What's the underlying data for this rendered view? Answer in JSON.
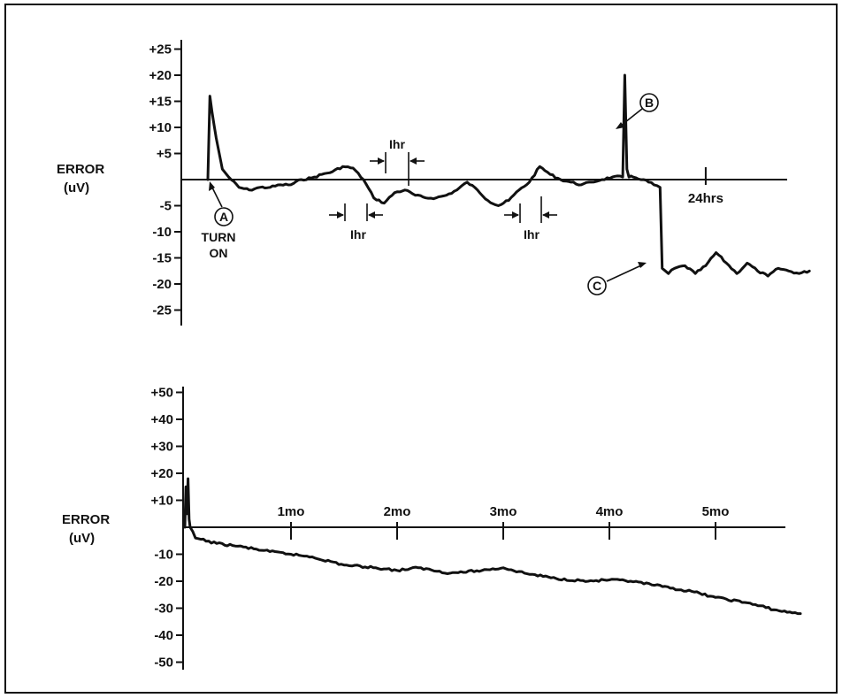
{
  "chart_data": [
    {
      "type": "line",
      "ylabel": "ERROR\n(uV)",
      "ylabel_lines": [
        "ERROR",
        "(uV)"
      ],
      "ylim": [
        -25,
        25
      ],
      "yticks": [
        25,
        20,
        15,
        10,
        5,
        -5,
        -10,
        -15,
        -20,
        -25
      ],
      "ytick_labels": [
        "+25",
        "+20",
        "+15",
        "+10",
        "+5",
        "-5",
        "-10",
        "-15",
        "-20",
        "-25"
      ],
      "xlim_hours": [
        0,
        29
      ],
      "xticks": [
        {
          "x": 24,
          "label": "24hrs"
        }
      ],
      "grid": false,
      "series": [
        {
          "x": [
            0,
            0.1,
            0.2,
            0.4,
            0.7,
            1.0,
            1.5,
            2.0,
            2.5,
            3.0,
            3.5,
            4.0,
            4.5,
            5.0,
            5.5,
            6.0,
            6.5,
            7.0,
            7.5,
            8.0,
            8.5,
            9.0,
            9.5,
            10.0,
            10.5,
            11.0,
            11.5,
            12.0,
            12.5,
            13.0,
            13.5,
            14.0,
            14.5,
            15.0,
            15.5,
            16.0,
            16.5,
            17.0,
            17.5,
            18.0,
            18.5,
            19.0,
            19.5,
            20.0,
            20.1,
            20.2,
            20.3,
            20.5,
            21.0,
            21.5,
            21.8,
            21.9,
            22.2,
            22.5,
            23.0,
            23.5,
            24.0,
            24.5,
            25.0,
            25.5,
            26.0,
            26.5,
            27.0,
            27.5,
            28.0,
            28.5,
            29.0
          ],
          "y": [
            0,
            16,
            13,
            8,
            2,
            0.5,
            -1.5,
            -2,
            -1.5,
            -1.5,
            -1,
            -1,
            0,
            0.3,
            1,
            1.5,
            2.5,
            2.2,
            0,
            -3.5,
            -4.5,
            -2.5,
            -2,
            -3,
            -3.5,
            -3.5,
            -3,
            -2,
            -0.5,
            -2,
            -4,
            -5,
            -4,
            -2,
            -0.5,
            2.5,
            1,
            0,
            -0.5,
            -1,
            -0.5,
            0,
            0.5,
            0.5,
            20,
            2,
            0.5,
            0.5,
            0,
            -1,
            -1.5,
            -17,
            -18,
            -17,
            -16.5,
            -18,
            -16.5,
            -14,
            -16,
            -18,
            -16,
            -17.5,
            -18.5,
            -17,
            -17.5,
            -18,
            -17.5
          ]
        }
      ],
      "annotations": [
        {
          "label": "A",
          "text": "TURN ON",
          "text_lines": [
            "TURN",
            "ON"
          ],
          "x": 0.1
        },
        {
          "label": "B",
          "x": 20.1
        },
        {
          "label": "C",
          "x": 21.9
        }
      ],
      "interval_markers": [
        "Ihr",
        "Ihr",
        "Ihr"
      ]
    },
    {
      "type": "line",
      "ylabel": "ERROR\n(uV)",
      "ylabel_lines": [
        "ERROR",
        "(uV)"
      ],
      "ylim": [
        -50,
        50
      ],
      "yticks": [
        50,
        40,
        30,
        20,
        10,
        -10,
        -20,
        -30,
        -40,
        -50
      ],
      "ytick_labels": [
        "+50",
        "+40",
        "+30",
        "+20",
        "+10",
        "-10",
        "-20",
        "-30",
        "-40",
        "-50"
      ],
      "xlim_months": [
        0,
        5.8
      ],
      "xticks": [
        {
          "x": 1,
          "label": "1mo"
        },
        {
          "x": 2,
          "label": "2mo"
        },
        {
          "x": 3,
          "label": "3mo"
        },
        {
          "x": 4,
          "label": "4mo"
        },
        {
          "x": 5,
          "label": "5mo"
        }
      ],
      "grid": false,
      "series": [
        {
          "x": [
            0,
            0.01,
            0.02,
            0.03,
            0.04,
            0.05,
            0.1,
            0.3,
            0.5,
            0.8,
            1.0,
            1.2,
            1.5,
            1.8,
            2.0,
            2.2,
            2.5,
            2.8,
            3.0,
            3.2,
            3.5,
            3.8,
            4.0,
            4.2,
            4.5,
            4.8,
            5.0,
            5.3,
            5.6,
            5.8
          ],
          "y": [
            0,
            15,
            5,
            18,
            3,
            0,
            -4,
            -6,
            -7,
            -9,
            -10,
            -11,
            -14,
            -15,
            -16,
            -15,
            -17,
            -16,
            -15,
            -17,
            -19,
            -20,
            -19.5,
            -20,
            -22,
            -24,
            -26,
            -28,
            -31,
            -32
          ]
        }
      ]
    }
  ]
}
